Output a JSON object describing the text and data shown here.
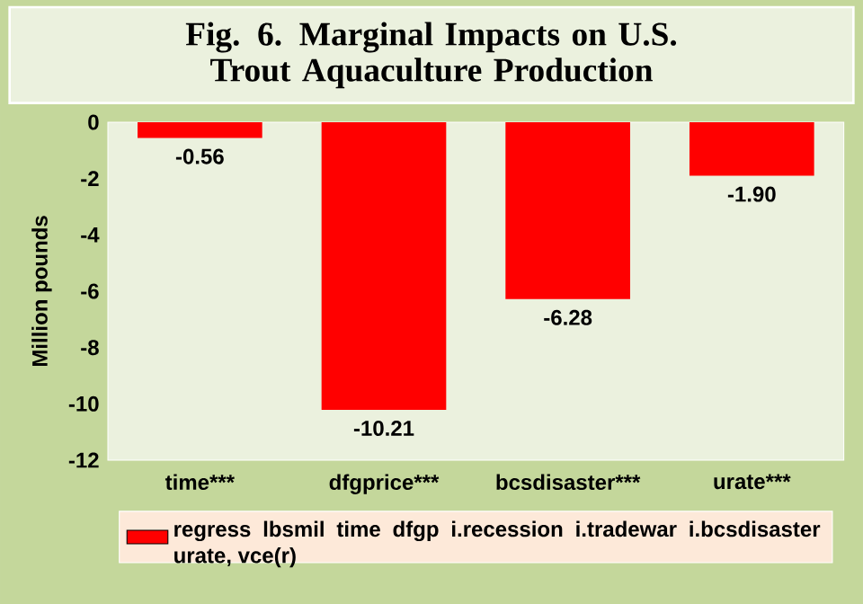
{
  "chart_data": {
    "type": "bar",
    "title": "Fig. 6. Marginal Impacts on U.S. Trout Aquaculture Production",
    "categories": [
      "time***",
      "dfgprice***",
      "bcsdisaster***",
      "urate***"
    ],
    "series": [
      {
        "name": "regress lbsmil time dfgp i.recession i.tradewar i.bcsdisaster urate, vce(r)",
        "color": "#ff0000",
        "values": [
          -0.56,
          -10.21,
          -6.28,
          -1.9
        ]
      }
    ],
    "value_labels": [
      "-0.56",
      "-10.21",
      "-6.28",
      "-1.90"
    ],
    "ylabel": "Million pounds",
    "ylim": [
      -12,
      0
    ],
    "yticks": [
      -12,
      -10,
      -8,
      -6,
      -4,
      -2,
      0
    ],
    "legend": "bottom"
  }
}
